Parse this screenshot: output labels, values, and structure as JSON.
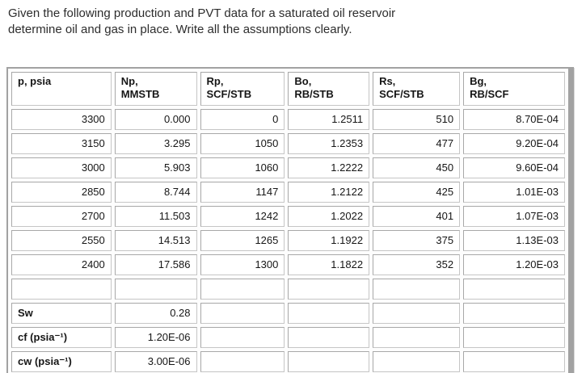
{
  "problem": {
    "line1": "Given the following production and PVT data for a saturated oil reservoir",
    "line2": "determine oil and gas in place. Write all the assumptions clearly."
  },
  "table": {
    "headers": [
      "p, psia",
      "Np,\nMMSTB",
      "Rp,\nSCF/STB",
      "Bo,\nRB/STB",
      "Rs,\nSCF/STB",
      "Bg,\nRB/SCF"
    ],
    "data_rows": [
      [
        "3300",
        "0.000",
        "0",
        "1.2511",
        "510",
        "8.70E-04"
      ],
      [
        "3150",
        "3.295",
        "1050",
        "1.2353",
        "477",
        "9.20E-04"
      ],
      [
        "3000",
        "5.903",
        "1060",
        "1.2222",
        "450",
        "9.60E-04"
      ],
      [
        "2850",
        "8.744",
        "1147",
        "1.2122",
        "425",
        "1.01E-03"
      ],
      [
        "2700",
        "11.503",
        "1242",
        "1.2022",
        "401",
        "1.07E-03"
      ],
      [
        "2550",
        "14.513",
        "1265",
        "1.1922",
        "375",
        "1.13E-03"
      ],
      [
        "2400",
        "17.586",
        "1300",
        "1.1822",
        "352",
        "1.20E-03"
      ]
    ],
    "spacer_row": [
      "",
      "",
      "",
      "",
      "",
      ""
    ],
    "param_rows": [
      {
        "label": "Sw",
        "value": "0.28"
      },
      {
        "label": "cf (psia⁻¹)",
        "value": "1.20E-06"
      },
      {
        "label": "cw (psia⁻¹)",
        "value": "3.00E-06"
      }
    ]
  },
  "colors": {
    "page_background": "#ffffff",
    "table_outer_border": "#a2a2a2",
    "cell_border": "#b4b4b4",
    "text": "#161616"
  }
}
